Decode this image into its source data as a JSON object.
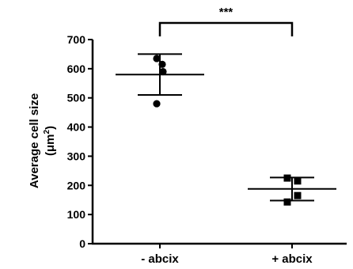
{
  "chart_data": {
    "type": "scatter",
    "title": "",
    "xlabel": "",
    "ylabel_line1": "Average cell size",
    "ylabel_line2_pre": "(",
    "ylabel_line2_mu": "μm",
    "ylabel_line2_sup": "2",
    "ylabel_line2_post": ")",
    "ylim": [
      0,
      700
    ],
    "yticks": [
      0,
      100,
      200,
      300,
      400,
      500,
      600,
      700
    ],
    "grid": false,
    "categories": [
      "- abcix",
      "+ abcix"
    ],
    "groups": [
      {
        "name": "- abcix",
        "marker": "circle",
        "values": [
          635,
          615,
          590,
          480
        ],
        "mean": 580,
        "sd_upper": 650,
        "sd_lower": 510
      },
      {
        "name": "+ abcix",
        "marker": "square",
        "values": [
          225,
          215,
          165,
          143
        ],
        "mean": 188,
        "sd_upper": 227,
        "sd_lower": 148
      }
    ],
    "annotation": {
      "text": "***",
      "between": [
        "- abcix",
        "+ abcix"
      ]
    }
  }
}
